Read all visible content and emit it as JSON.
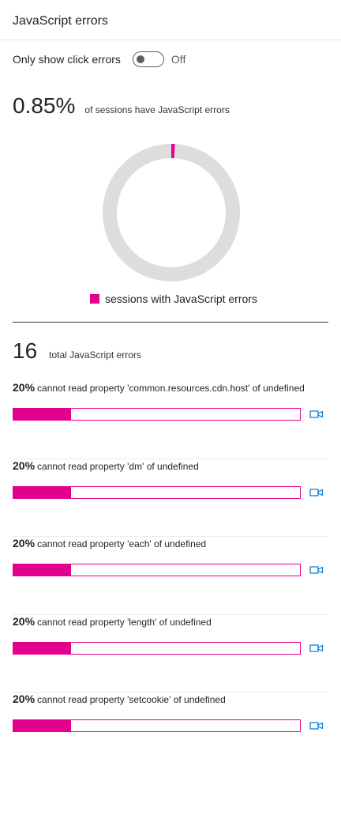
{
  "header": {
    "title": "JavaScript errors"
  },
  "toggle": {
    "label": "Only show click errors",
    "state": "Off",
    "on": false
  },
  "summary": {
    "percent_text": "0.85%",
    "description": "of sessions have JavaScript errors",
    "percent_value": 0.85
  },
  "chart_data": {
    "type": "pie",
    "title": "",
    "donut": true,
    "categories": [
      "sessions with JavaScript errors",
      ""
    ],
    "values": [
      0.85,
      99.15
    ],
    "colors": [
      "#e3008c",
      "#dddddd"
    ],
    "legend": "bottom"
  },
  "legend": {
    "label": "sessions with JavaScript errors"
  },
  "total": {
    "count": "16",
    "label": "total JavaScript errors"
  },
  "errors": [
    {
      "percent": "20%",
      "message": "cannot read property 'common.resources.cdn.host' of undefined",
      "fraction": 0.2
    },
    {
      "percent": "20%",
      "message": "cannot read property 'dm' of undefined",
      "fraction": 0.2
    },
    {
      "percent": "20%",
      "message": "cannot read property 'each' of undefined",
      "fraction": 0.2
    },
    {
      "percent": "20%",
      "message": "cannot read property 'length' of undefined",
      "fraction": 0.2
    },
    {
      "percent": "20%",
      "message": "cannot read property 'setcookie' of undefined",
      "fraction": 0.2
    }
  ],
  "icons": {
    "recording": "video-camera-icon"
  },
  "colors": {
    "accent": "#e3008c",
    "track": "#dddddd",
    "icon": "#0078d4"
  }
}
